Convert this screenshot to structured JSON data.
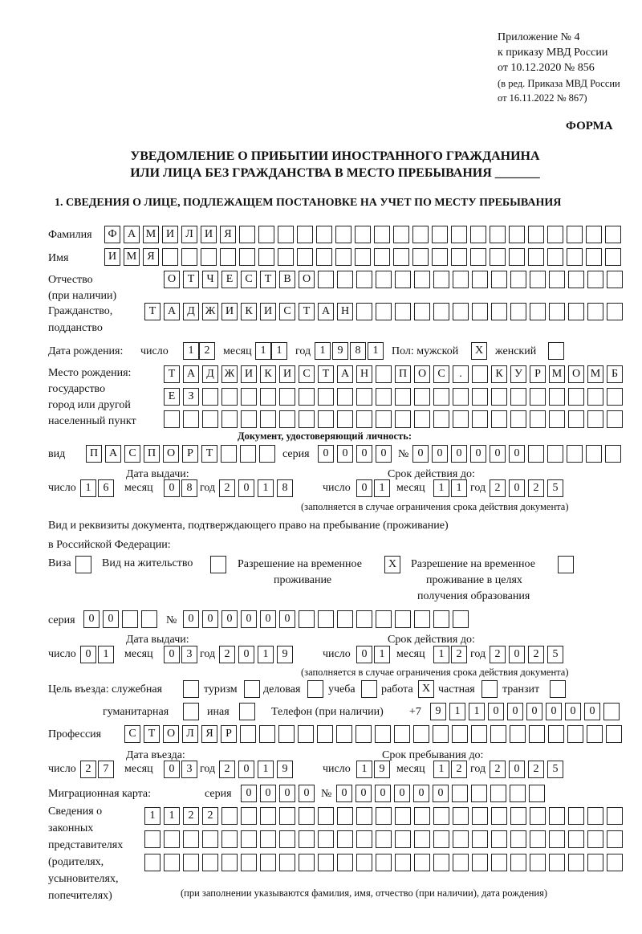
{
  "header": {
    "annex": "Приложение № 4",
    "order": "к приказу МВД России",
    "order_date": "от 10.12.2020 № 856",
    "edit1": "(в ред. Приказа МВД России",
    "edit2": "от 16.11.2022 № 867)",
    "form": "ФОРМА"
  },
  "title": {
    "line1": "УВЕДОМЛЕНИЕ О ПРИБЫТИИ ИНОСТРАННОГО ГРАЖДАНИНА",
    "line2": "ИЛИ ЛИЦА БЕЗ ГРАЖДАНСТВА В МЕСТО ПРЕБЫВАНИЯ _______"
  },
  "section1": "1. СВЕДЕНИЯ О ЛИЦЕ, ПОДЛЕЖАЩЕМ ПОСТАНОВКЕ НА УЧЕТ ПО МЕСТУ ПРЕБЫВАНИЯ",
  "labels": {
    "surname": "Фамилия",
    "name": "Имя",
    "patronymic": "Отчество",
    "patronymic2": "(при наличии)",
    "citizenship": "Гражданство,",
    "citizenship2": "подданство",
    "birth_date": "Дата рождения:",
    "day": "число",
    "month": "месяц",
    "year": "год",
    "sex": "Пол: мужской",
    "female": "женский",
    "birthplace": "Место рождения:",
    "birthplace2": "государство",
    "birthplace3": "город или другой",
    "birthplace4": "населенный пункт",
    "id_doc": "Документ, удостоверяющий личность:",
    "kind": "вид",
    "series": "серия",
    "number": "№",
    "issue_date": "Дата выдачи:",
    "valid_until": "Срок действия до:",
    "valid_note": "(заполняется в случае ограничения срока действия документа)",
    "right_doc1": "Вид и реквизиты документа, подтверждающего право на пребывание (проживание)",
    "right_doc2": "в Российской Федерации:",
    "visa": "Виза",
    "residence": "Вид на жительство",
    "temp1": "Разрешение на временное",
    "temp2": "проживание",
    "edu1": "Разрешение на временное",
    "edu2": "проживание в целях",
    "edu3": "получения образования",
    "purpose": "Цель въезда: служебная",
    "tourism": "туризм",
    "business": "деловая",
    "study": "учеба",
    "work": "работа",
    "private": "частная",
    "transit": "транзит",
    "humanitarian": "гуманитарная",
    "other": "иная",
    "phone": "Телефон (при наличии)",
    "phone_prefix": "+7",
    "profession": "Профессия",
    "entry_date": "Дата въезда:",
    "stay_until": "Срок пребывания до:",
    "migration_card": "Миграционная карта:",
    "reps1": "Сведения о",
    "reps2": "законных",
    "reps3": "представителях",
    "reps4": "(родителях,",
    "reps5": "усыновителях,",
    "reps6": "попечителях)",
    "reps_note": "(при заполнении указываются фамилия, имя, отчество (при наличии), дата рождения)"
  },
  "values": {
    "surname": "ФАМИЛИЯ",
    "name": "ИМЯ",
    "patronymic": "ОТЧЕСТВО",
    "citizenship": "ТАДЖИКИСТАН",
    "birth_day": "12",
    "birth_month": "11",
    "birth_year": "1981",
    "sex_male": "X",
    "sex_female": "",
    "birthplace1": "ТАДЖИКИСТАН ПОС. КУРМОМБ",
    "birthplace2": "ЕЗ",
    "birthplace3": "",
    "id_kind": "ПАСПОРТ",
    "id_series": "0000",
    "id_number": "000000",
    "id_issue_day": "16",
    "id_issue_month": "08",
    "id_issue_year": "2018",
    "id_valid_day": "01",
    "id_valid_month": "11",
    "id_valid_year": "2025",
    "visa": "",
    "residence": "",
    "temp_residence": "X",
    "edu_residence": "",
    "rd_series": "00",
    "rd_number": "000000",
    "rd_issue_day": "01",
    "rd_issue_month": "03",
    "rd_issue_year": "2019",
    "rd_valid_day": "01",
    "rd_valid_month": "12",
    "rd_valid_year": "2025",
    "p_service": "",
    "p_tourism": "",
    "p_business": "",
    "p_study": "",
    "p_work": "X",
    "p_private": "",
    "p_transit": "",
    "p_humanitarian": "",
    "p_other": "",
    "phone": "911000000",
    "profession": "СТОЛЯР",
    "entry_day": "27",
    "entry_month": "03",
    "entry_year": "2019",
    "stay_day": "19",
    "stay_month": "12",
    "stay_year": "2025",
    "mc_series": "0000",
    "mc_number": "000000",
    "reps1": "1122",
    "reps2": "",
    "reps3": ""
  }
}
